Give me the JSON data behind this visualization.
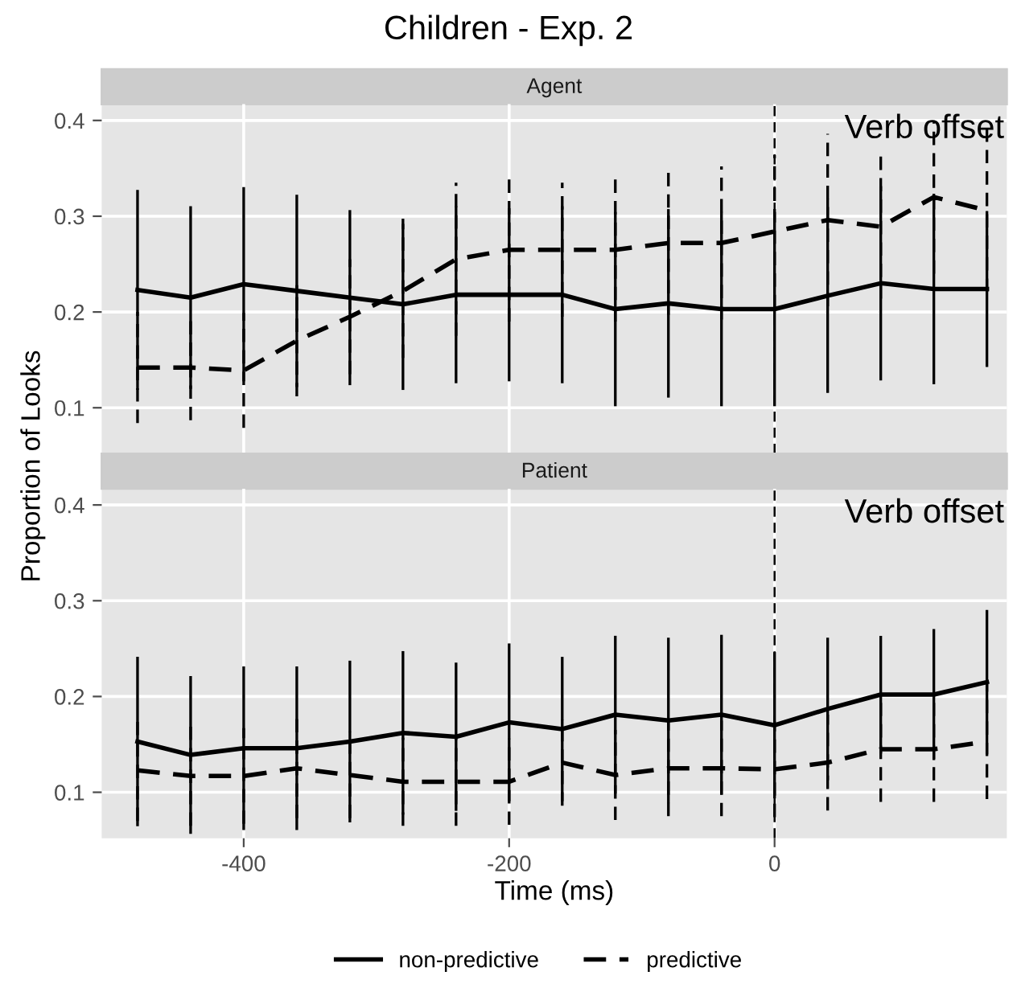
{
  "chart_data": [
    {
      "type": "line",
      "title": "Children - Exp. 2",
      "subtitle": "Agent",
      "x": [
        -480,
        -440,
        -400,
        -360,
        -320,
        -280,
        -240,
        -200,
        -160,
        -120,
        -80,
        -40,
        0,
        40,
        80,
        120,
        160
      ],
      "xlim": [
        -507,
        175
      ],
      "xticks": [
        -400,
        -200,
        0
      ],
      "ylim": [
        0.052,
        0.417
      ],
      "yticks": [
        0.1,
        0.2,
        0.3,
        0.4
      ],
      "tick_labels": "y",
      "grid": true,
      "legend": "bottom",
      "ylabel": "Proportion of Looks",
      "series": [
        {
          "name": "non-predictive",
          "color": "#000000",
          "line_style": "solid",
          "values": [
            0.223,
            0.215,
            0.229,
            0.222,
            0.215,
            0.208,
            0.218,
            0.218,
            0.218,
            0.203,
            0.209,
            0.203,
            0.203,
            0.217,
            0.23,
            0.224,
            0.224
          ],
          "errors": [
            0.103,
            0.094,
            0.1,
            0.099,
            0.09,
            0.088,
            0.091,
            0.089,
            0.091,
            0.1,
            0.097,
            0.1,
            0.1,
            0.1,
            0.1,
            0.098,
            0.08
          ]
        },
        {
          "name": "predictive",
          "color": "#000000",
          "line_style": "dashed",
          "values": [
            0.142,
            0.142,
            0.139,
            0.17,
            0.195,
            0.222,
            0.255,
            0.265,
            0.265,
            0.265,
            0.272,
            0.272,
            0.284,
            0.296,
            0.289,
            0.32,
            0.306
          ],
          "errors": [
            0.058,
            0.055,
            0.06,
            0.058,
            0.06,
            0.07,
            0.08,
            0.075,
            0.07,
            0.075,
            0.075,
            0.08,
            0.08,
            0.09,
            0.075,
            0.08,
            0.085
          ]
        }
      ],
      "ref_lines": [
        {
          "axis": "x",
          "value": 0,
          "label": "Verb offset",
          "line_style": "dashed",
          "color": "#000000"
        }
      ]
    },
    {
      "type": "line",
      "subtitle": "Patient",
      "x": [
        -480,
        -440,
        -400,
        -360,
        -320,
        -280,
        -240,
        -200,
        -160,
        -120,
        -80,
        -40,
        0,
        40,
        80,
        120,
        160
      ],
      "xlim": [
        -507,
        175
      ],
      "xticks": [
        -400,
        -200,
        0
      ],
      "ylim": [
        0.052,
        0.417
      ],
      "yticks": [
        0.1,
        0.2,
        0.3,
        0.4
      ],
      "grid": true,
      "xlabel": "Time (ms)",
      "series": [
        {
          "name": "non-predictive",
          "color": "#000000",
          "line_style": "solid",
          "values": [
            0.153,
            0.139,
            0.146,
            0.146,
            0.153,
            0.162,
            0.158,
            0.173,
            0.166,
            0.181,
            0.175,
            0.181,
            0.17,
            0.187,
            0.202,
            0.202,
            0.215
          ],
          "errors": [
            0.087,
            0.081,
            0.084,
            0.084,
            0.083,
            0.084,
            0.076,
            0.081,
            0.074,
            0.081,
            0.085,
            0.082,
            0.075,
            0.073,
            0.06,
            0.067,
            0.074
          ]
        },
        {
          "name": "predictive",
          "color": "#000000",
          "line_style": "dashed",
          "values": [
            0.123,
            0.117,
            0.117,
            0.125,
            0.118,
            0.111,
            0.111,
            0.111,
            0.131,
            0.118,
            0.125,
            0.125,
            0.124,
            0.131,
            0.145,
            0.145,
            0.153
          ],
          "errors": [
            0.053,
            0.052,
            0.05,
            0.052,
            0.045,
            0.046,
            0.046,
            0.045,
            0.045,
            0.047,
            0.05,
            0.05,
            0.05,
            0.05,
            0.055,
            0.055,
            0.06
          ]
        }
      ],
      "ref_lines": [
        {
          "axis": "x",
          "value": 0,
          "label": "Verb offset",
          "line_style": "dashed",
          "color": "#000000"
        }
      ]
    }
  ]
}
